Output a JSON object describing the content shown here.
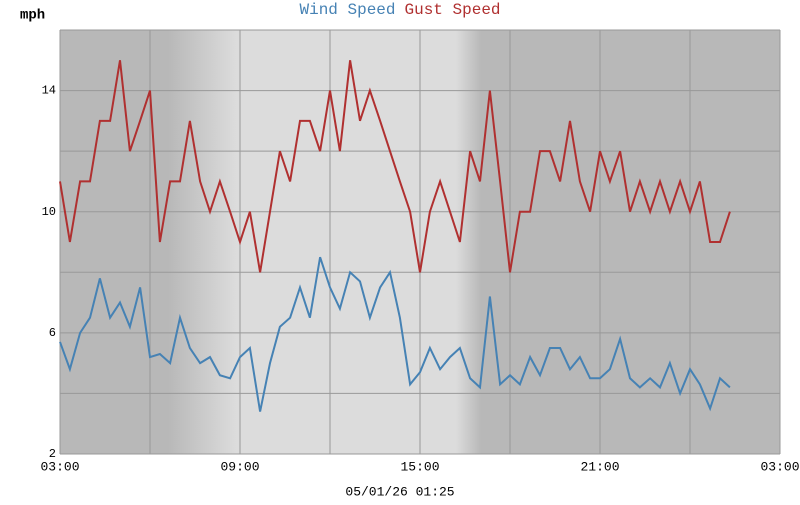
{
  "chart_data": {
    "type": "line",
    "y_label": "mph",
    "footer": "05/01/26 01:25",
    "xlim": [
      3,
      27
    ],
    "xticks": [
      {
        "value": 3,
        "label": "03:00"
      },
      {
        "value": 9,
        "label": "09:00"
      },
      {
        "value": 15,
        "label": "15:00"
      },
      {
        "value": 21,
        "label": "21:00"
      },
      {
        "value": 27,
        "label": "03:00"
      }
    ],
    "xgrid": [
      6,
      12,
      18,
      24
    ],
    "ylim": [
      2,
      16
    ],
    "yticks": [
      2,
      6,
      10,
      14
    ],
    "ygrid": [
      4,
      8,
      12,
      16
    ],
    "grid": true,
    "x": [
      3,
      3.33,
      3.67,
      4,
      4.33,
      4.67,
      5,
      5.33,
      5.67,
      6,
      6.33,
      6.67,
      7,
      7.33,
      7.67,
      8,
      8.33,
      8.67,
      9,
      9.33,
      9.67,
      10,
      10.33,
      10.67,
      11,
      11.33,
      11.67,
      12,
      12.33,
      12.67,
      13,
      13.33,
      13.67,
      14,
      14.33,
      14.67,
      15,
      15.33,
      15.67,
      16,
      16.33,
      16.67,
      17,
      17.33,
      17.67,
      18,
      18.33,
      18.67,
      19,
      19.33,
      19.67,
      20,
      20.33,
      20.67,
      21,
      21.33,
      21.67,
      22,
      22.33,
      22.67,
      23,
      23.33,
      23.67,
      24,
      24.33,
      24.67,
      25,
      25.33
    ],
    "series": [
      {
        "name": "Wind Speed",
        "color": "#4682b4",
        "values": [
          5.7,
          4.8,
          6,
          6.5,
          7.8,
          6.5,
          7,
          6.2,
          7.5,
          5.2,
          5.3,
          5,
          6.5,
          5.5,
          5,
          5.2,
          4.6,
          4.5,
          5.2,
          5.5,
          3.4,
          5,
          6.2,
          6.5,
          7.5,
          6.5,
          8.5,
          7.5,
          6.8,
          8,
          7.7,
          6.5,
          7.5,
          8,
          6.5,
          4.3,
          4.7,
          5.5,
          4.8,
          5.2,
          5.5,
          4.5,
          4.2,
          7.2,
          4.3,
          4.6,
          4.3,
          5.2,
          4.6,
          5.5,
          5.5,
          4.8,
          5.2,
          4.5,
          4.5,
          4.8,
          5.8,
          4.5,
          4.2,
          4.5,
          4.2,
          5,
          4,
          4.8,
          4.3,
          3.5,
          4.5,
          4.2
        ]
      },
      {
        "name": "Gust Speed",
        "color": "#b03030",
        "values": [
          11,
          9,
          11,
          11,
          13,
          13,
          15,
          12,
          13,
          14,
          9,
          11,
          11,
          13,
          11,
          10,
          11,
          10,
          9,
          10,
          8,
          10,
          12,
          11,
          13,
          13,
          12,
          14,
          12,
          15,
          13,
          14,
          13,
          12,
          11,
          10,
          8,
          10,
          11,
          10,
          9,
          12,
          11,
          14,
          11,
          8,
          10,
          10,
          12,
          12,
          11,
          13,
          11,
          10,
          12,
          11,
          12,
          10,
          11,
          10,
          11,
          10,
          11,
          10,
          11,
          9,
          9,
          10
        ]
      }
    ]
  }
}
